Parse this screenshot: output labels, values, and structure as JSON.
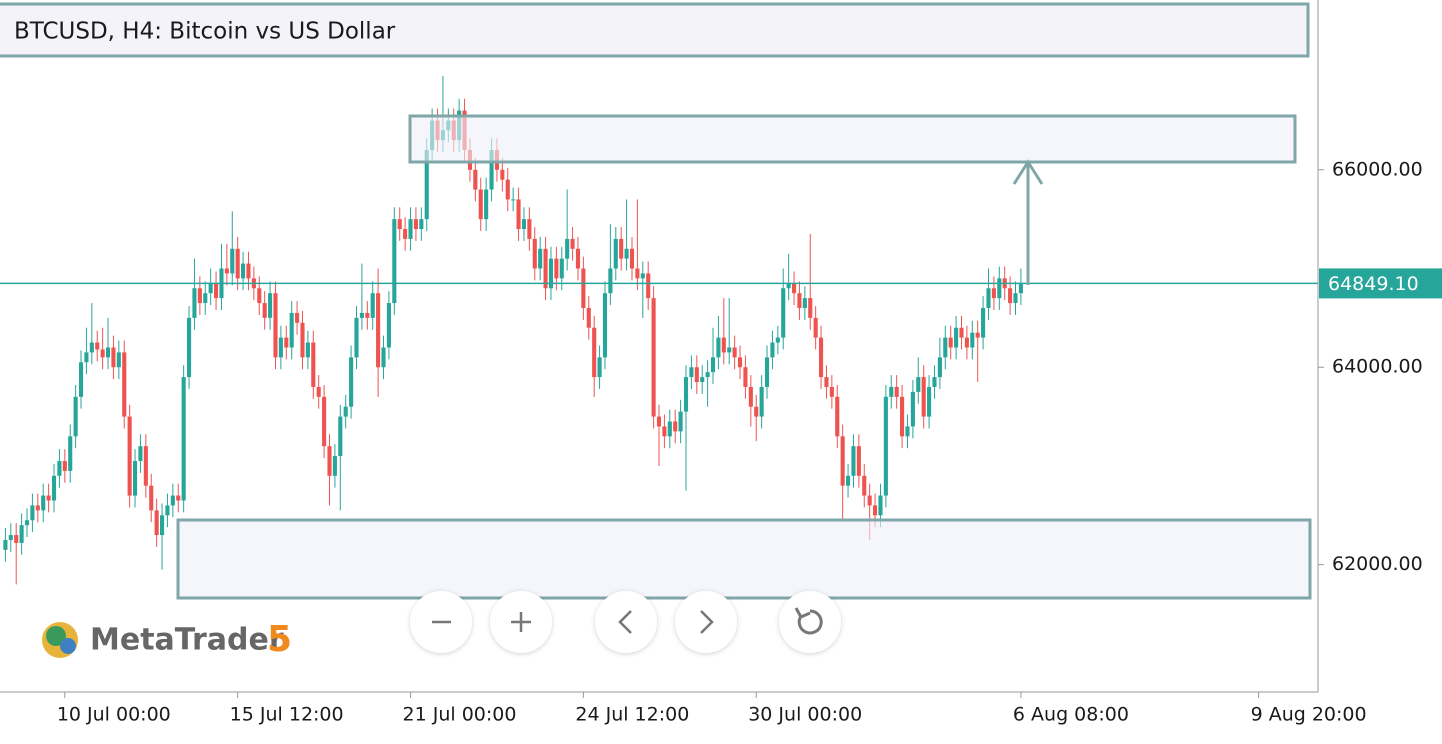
{
  "chart_data": {
    "type": "candlestick",
    "title": "BTCUSD, H4: Bitcoin vs US Dollar",
    "up_color": "#26a69a",
    "down_color": "#ef5350",
    "xlim": [
      -1,
      243
    ],
    "ylim": [
      60710,
      67720
    ],
    "xticks": [
      {
        "value": 11,
        "label": "10 Jul 00:00"
      },
      {
        "value": 43,
        "label": "15 Jul 12:00"
      },
      {
        "value": 75,
        "label": "21 Jul 00:00"
      },
      {
        "value": 107,
        "label": "24 Jul 12:00"
      },
      {
        "value": 139,
        "label": "30 Jul 00:00"
      },
      {
        "value": 188,
        "label": "6 Aug 08:00"
      },
      {
        "value": 232,
        "label": "9 Aug 20:00"
      }
    ],
    "yticks": [
      {
        "value": 62000,
        "label": "62000.00"
      },
      {
        "value": 64000,
        "label": "64000.00"
      },
      {
        "value": 66000,
        "label": "66000.00"
      }
    ],
    "last_price": {
      "value": 64849.1,
      "label": "64849.10"
    },
    "open": [
      62150,
      62250,
      62300,
      62220,
      62400,
      62450,
      62600,
      62550,
      62700,
      62650,
      62900,
      63050,
      62950,
      63300,
      63700,
      64050,
      64150,
      64250,
      64180,
      64100,
      64200,
      64000,
      64150,
      63500,
      62700,
      63050,
      63200,
      62800,
      62550,
      62300,
      62500,
      62600,
      62700,
      62650,
      63900,
      64500,
      64800,
      64650,
      64750,
      64850,
      64700,
      65000,
      64950,
      65200,
      64900,
      65050,
      64900,
      64800,
      64650,
      64500,
      64750,
      64100,
      64300,
      64200,
      64550,
      64450,
      64100,
      64250,
      63800,
      63700,
      63200,
      62900,
      63100,
      63500,
      63600,
      64100,
      64500,
      64550,
      64500,
      64750,
      64000,
      64200,
      64650,
      65500,
      65400,
      65300,
      65500,
      65400,
      65500,
      66200,
      66500,
      66300,
      66400,
      66500,
      66300,
      66600,
      66200,
      66000,
      65800,
      65500,
      65800,
      66200,
      66000,
      65900,
      65700,
      65700,
      65400,
      65500,
      65300,
      65000,
      65200,
      64800,
      65100,
      64900,
      65100,
      65300,
      65200,
      65000,
      64600,
      64400,
      63900,
      64100,
      64750,
      65000,
      65300,
      65100,
      65200,
      65000,
      64900,
      64950,
      64700,
      63500,
      63400,
      63300,
      63450,
      63350,
      63550,
      63900,
      64000,
      63850,
      63900,
      63950,
      64100,
      64300,
      64150,
      64200,
      64100,
      64000,
      63800,
      63600,
      63500,
      63800,
      64100,
      64250,
      64300,
      64800,
      64850,
      64750,
      64600,
      64700,
      64500,
      64300,
      63900,
      63800,
      63700,
      63300,
      62800,
      62900,
      63200,
      62900,
      62700,
      62600,
      62500,
      62700,
      63700,
      63800,
      63700,
      63300,
      63400,
      63750,
      63900,
      63500,
      63800,
      63900,
      64100,
      64300,
      64200,
      64400,
      64300,
      64200,
      64350,
      64300,
      64600,
      64800,
      64700,
      64900,
      64800,
      64650,
      64750
    ],
    "high": [
      62370,
      62420,
      62420,
      62520,
      62570,
      62720,
      62720,
      62820,
      62820,
      63020,
      63170,
      63170,
      63420,
      63820,
      64170,
      64400,
      64650,
      64370,
      64400,
      64500,
      64320,
      64270,
      64270,
      63620,
      63170,
      63320,
      63320,
      62920,
      62670,
      62620,
      62720,
      62820,
      62820,
      64020,
      64620,
      65100,
      64920,
      64870,
      65000,
      64970,
      65250,
      65250,
      65580,
      65320,
      65170,
      65170,
      65020,
      64920,
      64770,
      64870,
      64870,
      64420,
      64420,
      64670,
      64670,
      64570,
      64370,
      64370,
      63920,
      63820,
      63320,
      63220,
      63620,
      63720,
      64220,
      64620,
      65050,
      64670,
      64870,
      65000,
      64320,
      64770,
      65620,
      65620,
      65520,
      65620,
      65620,
      65620,
      66320,
      66620,
      66620,
      66950,
      66620,
      66620,
      66720,
      66720,
      66320,
      66120,
      65920,
      65920,
      66320,
      66320,
      66120,
      66020,
      65820,
      65820,
      65620,
      65620,
      65420,
      65320,
      65320,
      65220,
      65220,
      65220,
      65800,
      65420,
      65320,
      65120,
      64720,
      64520,
      64220,
      64870,
      65450,
      65420,
      65420,
      65700,
      65320,
      65700,
      65070,
      65070,
      64820,
      63620,
      63520,
      63570,
      63570,
      63670,
      64020,
      64120,
      64120,
      64020,
      64070,
      64400,
      64520,
      64700,
      64700,
      64320,
      64220,
      64120,
      63920,
      63720,
      63920,
      64220,
      64370,
      64420,
      65000,
      65150,
      64970,
      64870,
      64820,
      65350,
      64620,
      64420,
      64020,
      63920,
      63820,
      63420,
      63020,
      63320,
      63320,
      63020,
      62820,
      62720,
      62820,
      63820,
      63920,
      63920,
      63820,
      63520,
      63870,
      64100,
      64020,
      63920,
      64020,
      64300,
      64420,
      64420,
      64520,
      64520,
      64420,
      64470,
      64470,
      64720,
      65000,
      64920,
      65020,
      65020,
      64920,
      64870,
      65000
    ],
    "low": [
      62030,
      62130,
      61800,
      62100,
      62280,
      62330,
      62430,
      62430,
      62530,
      62530,
      62780,
      62830,
      62830,
      63180,
      63580,
      63930,
      64030,
      64060,
      63980,
      63980,
      63880,
      63880,
      63380,
      62580,
      62580,
      62930,
      62680,
      62430,
      62180,
      61950,
      62380,
      62480,
      62530,
      62530,
      63780,
      64380,
      64530,
      64530,
      64630,
      64580,
      64580,
      64830,
      64830,
      64780,
      64780,
      64780,
      64680,
      64530,
      64380,
      64380,
      63980,
      63980,
      64080,
      64080,
      64330,
      63980,
      63980,
      63680,
      63580,
      63080,
      62600,
      62780,
      62550,
      63380,
      63480,
      63980,
      64380,
      64380,
      64380,
      63700,
      63880,
      64080,
      64530,
      65280,
      65180,
      65180,
      65280,
      65280,
      65380,
      66080,
      66180,
      66180,
      66280,
      66180,
      66180,
      66080,
      65880,
      65680,
      65380,
      65380,
      65680,
      65880,
      65780,
      65580,
      65580,
      65280,
      65280,
      65180,
      64880,
      64880,
      64680,
      64680,
      64780,
      64780,
      64980,
      65080,
      64880,
      64480,
      64280,
      63700,
      63780,
      63980,
      64630,
      64880,
      64980,
      64980,
      64880,
      64780,
      64500,
      64580,
      63380,
      63000,
      63180,
      63180,
      63230,
      63230,
      62750,
      63780,
      63730,
      63730,
      63600,
      63830,
      63980,
      64030,
      64030,
      63980,
      63880,
      63680,
      63400,
      63250,
      63380,
      63680,
      63980,
      64130,
      64180,
      64680,
      64630,
      64480,
      64480,
      64380,
      64180,
      63780,
      63680,
      63580,
      63180,
      62450,
      62680,
      62780,
      62780,
      62580,
      62250,
      62380,
      62380,
      62580,
      63580,
      63580,
      63180,
      63180,
      63280,
      63630,
      63380,
      63380,
      63680,
      63780,
      63980,
      64080,
      64080,
      64180,
      64080,
      64080,
      63850,
      64180,
      64480,
      64580,
      64580,
      64680,
      64530,
      64530,
      64630
    ],
    "close": [
      62250,
      62300,
      62220,
      62400,
      62450,
      62600,
      62550,
      62700,
      62650,
      62900,
      63050,
      62950,
      63300,
      63700,
      64050,
      64150,
      64250,
      64180,
      64100,
      64200,
      64000,
      64150,
      63500,
      62700,
      63050,
      63200,
      62800,
      62550,
      62300,
      62500,
      62600,
      62700,
      62650,
      63900,
      64500,
      64800,
      64650,
      64750,
      64850,
      64700,
      65000,
      64950,
      65200,
      64900,
      65050,
      64900,
      64800,
      64650,
      64500,
      64750,
      64100,
      64300,
      64200,
      64550,
      64450,
      64100,
      64250,
      63800,
      63700,
      63200,
      62900,
      63100,
      63500,
      63600,
      64100,
      64500,
      64550,
      64500,
      64750,
      64000,
      64200,
      64650,
      65500,
      65400,
      65300,
      65500,
      65400,
      65500,
      66200,
      66500,
      66300,
      66400,
      66500,
      66300,
      66600,
      66200,
      66000,
      65800,
      65500,
      65800,
      66200,
      66000,
      65900,
      65700,
      65700,
      65400,
      65500,
      65300,
      65000,
      65200,
      64800,
      65100,
      64900,
      65100,
      65300,
      65200,
      65000,
      64600,
      64400,
      63900,
      64100,
      64750,
      65000,
      65300,
      65100,
      65200,
      65000,
      64900,
      64950,
      64700,
      63500,
      63400,
      63300,
      63450,
      63350,
      63550,
      63900,
      64000,
      63850,
      63900,
      63950,
      64100,
      64300,
      64150,
      64200,
      64100,
      64000,
      63800,
      63600,
      63500,
      63800,
      64100,
      64250,
      64300,
      64800,
      64850,
      64750,
      64600,
      64700,
      64500,
      64300,
      63900,
      63800,
      63700,
      63300,
      62800,
      62900,
      63200,
      62900,
      62700,
      62600,
      62500,
      62700,
      63700,
      63800,
      63700,
      63300,
      63400,
      63750,
      63900,
      63500,
      63800,
      63900,
      64100,
      64300,
      64200,
      64400,
      64300,
      64200,
      64350,
      64300,
      64600,
      64800,
      64700,
      64900,
      64800,
      64650,
      64750,
      64849.1
    ]
  },
  "logo": {
    "name": "MetaTrader",
    "version": "5"
  }
}
